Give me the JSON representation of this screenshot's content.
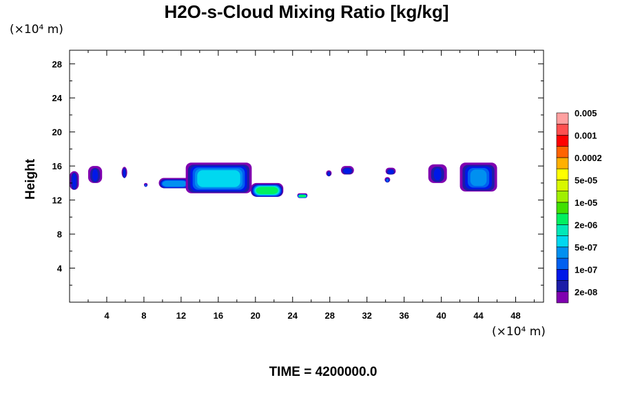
{
  "title": "H2O-s-Cloud Mixing Ratio [kg/kg]",
  "y_unit": "(×10⁴ m)",
  "x_unit": "(×10⁴ m)",
  "time_label": "TIME = 4200000.0",
  "chart_data": {
    "type": "heatmap",
    "title": "H2O-s-Cloud Mixing Ratio [kg/kg]",
    "xlabel": "",
    "ylabel": "Height",
    "x_unit": "(×10⁴ m)",
    "y_unit": "(×10⁴ m)",
    "xlim": [
      0,
      51
    ],
    "ylim": [
      0,
      29.6
    ],
    "x_ticks": [
      4,
      8,
      12,
      16,
      20,
      24,
      28,
      32,
      36,
      40,
      44,
      48
    ],
    "y_ticks": [
      4,
      8,
      12,
      16,
      20,
      24,
      28
    ],
    "colorbar": {
      "colors": [
        "#8000b0",
        "#1c1ca8",
        "#0018e8",
        "#0060f0",
        "#0090f0",
        "#00d8f0",
        "#00e8b8",
        "#00f060",
        "#40e000",
        "#a0f000",
        "#d8f800",
        "#ffff00",
        "#ffb000",
        "#ff6400",
        "#ff0000",
        "#ff5050",
        "#ffa0a0"
      ],
      "labels": [
        "2e-08",
        "1e-07",
        "5e-07",
        "2e-06",
        "1e-05",
        "5e-05",
        "0.0002",
        "0.001",
        "0.005"
      ]
    },
    "cloud_blobs": [
      {
        "x0": 0.0,
        "x1": 1.0,
        "y0": 13.2,
        "y1": 15.4,
        "level": 2
      },
      {
        "x0": 2.0,
        "x1": 3.5,
        "y0": 14.0,
        "y1": 16.0,
        "level": 2
      },
      {
        "x0": 5.6,
        "x1": 6.2,
        "y0": 14.6,
        "y1": 15.9,
        "level": 2
      },
      {
        "x0": 8.0,
        "x1": 8.4,
        "y0": 13.6,
        "y1": 14.0,
        "level": 3
      },
      {
        "x0": 9.6,
        "x1": 13.0,
        "y0": 13.4,
        "y1": 14.6,
        "level": 4
      },
      {
        "x0": 12.5,
        "x1": 19.6,
        "y0": 12.8,
        "y1": 16.4,
        "level": 5
      },
      {
        "x0": 19.5,
        "x1": 23.0,
        "y0": 12.4,
        "y1": 14.0,
        "level": 7
      },
      {
        "x0": 24.5,
        "x1": 25.6,
        "y0": 12.3,
        "y1": 12.8,
        "level": 7
      },
      {
        "x0": 27.6,
        "x1": 28.2,
        "y0": 14.8,
        "y1": 15.5,
        "level": 2
      },
      {
        "x0": 29.2,
        "x1": 30.6,
        "y0": 15.0,
        "y1": 16.0,
        "level": 2
      },
      {
        "x0": 34.0,
        "x1": 35.1,
        "y0": 15.0,
        "y1": 15.8,
        "level": 2
      },
      {
        "x0": 33.9,
        "x1": 34.5,
        "y0": 14.1,
        "y1": 14.7,
        "level": 3
      },
      {
        "x0": 38.6,
        "x1": 40.6,
        "y0": 14.0,
        "y1": 16.2,
        "level": 2
      },
      {
        "x0": 42.0,
        "x1": 46.0,
        "y0": 13.0,
        "y1": 16.4,
        "level": 4
      }
    ]
  }
}
